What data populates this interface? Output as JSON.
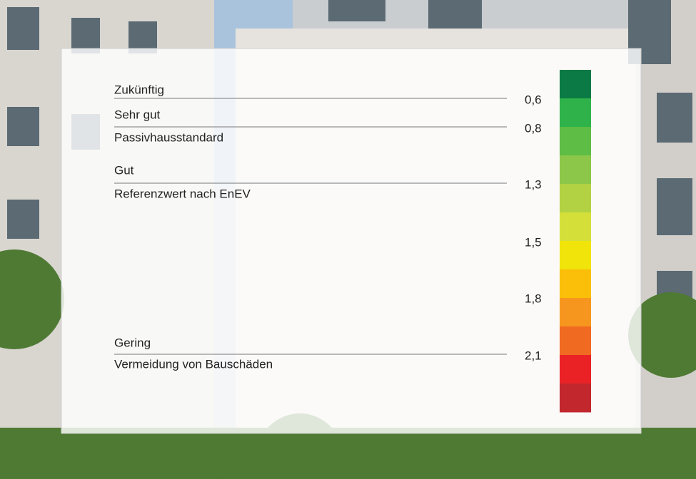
{
  "labels": [
    "Zukünftig",
    "Sehr gut",
    "Passivhausstandard",
    "Gut",
    "Referenzwert nach EnEV",
    "Gering",
    "Vermeidung von Bauschäden"
  ],
  "values": [
    "0,6",
    "0,8",
    "1,3",
    "1,5",
    "1,8",
    "2,1"
  ],
  "scale": {
    "colors": [
      "#0b7a45",
      "#2fb24a",
      "#5dbd45",
      "#8cc749",
      "#b2d143",
      "#d5df3a",
      "#f0e40a",
      "#fbbf0a",
      "#f7961e",
      "#f16a22",
      "#ea2226",
      "#c1272d"
    ]
  }
}
